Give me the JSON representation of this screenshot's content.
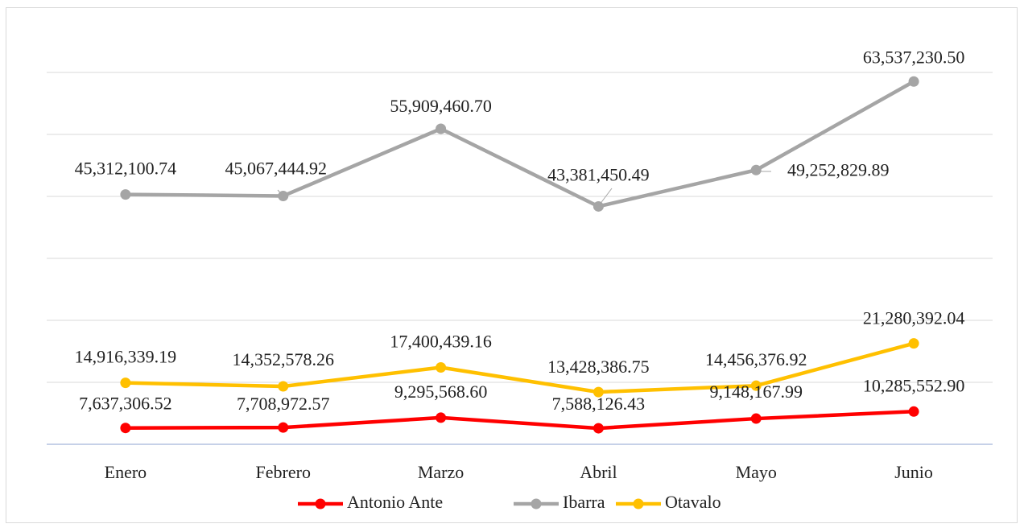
{
  "chart_data": {
    "type": "line",
    "categories": [
      "Enero",
      "Febrero",
      "Marzo",
      "Abril",
      "Mayo",
      "Junio"
    ],
    "series": [
      {
        "name": "Antonio Ante",
        "color": "#ff0000",
        "values": [
          7637306.52,
          7708972.57,
          9295568.6,
          7588126.43,
          9148167.99,
          10285552.9
        ],
        "value_labels": [
          "7,637,306.52",
          "7,708,972.57",
          "9,295,568.60",
          "7,588,126.43",
          "9,148,167.99",
          "10,285,552.90"
        ]
      },
      {
        "name": "Ibarra",
        "color": "#a5a5a5",
        "values": [
          45312100.74,
          45067444.92,
          55909460.7,
          43381450.49,
          49252829.89,
          63537230.5
        ],
        "value_labels": [
          "45,312,100.74",
          "45,067,444.92",
          "55,909,460.70",
          "43,381,450.49",
          "49,252,829.89",
          "63,537,230.50"
        ]
      },
      {
        "name": "Otavalo",
        "color": "#ffc000",
        "values": [
          14916339.19,
          14352578.26,
          17400439.16,
          13428386.75,
          14456376.92,
          21280392.04
        ],
        "value_labels": [
          "14,916,339.19",
          "14,352,578.26",
          "17,400,439.16",
          "13,428,386.75",
          "14,456,376.92",
          "21,280,392.04"
        ]
      }
    ],
    "ylim": [
      5000000,
      65000000
    ],
    "yticks": [
      5000000,
      15000000,
      25000000,
      35000000,
      45000000,
      55000000,
      65000000
    ],
    "grid": true,
    "legend": "bottom"
  }
}
